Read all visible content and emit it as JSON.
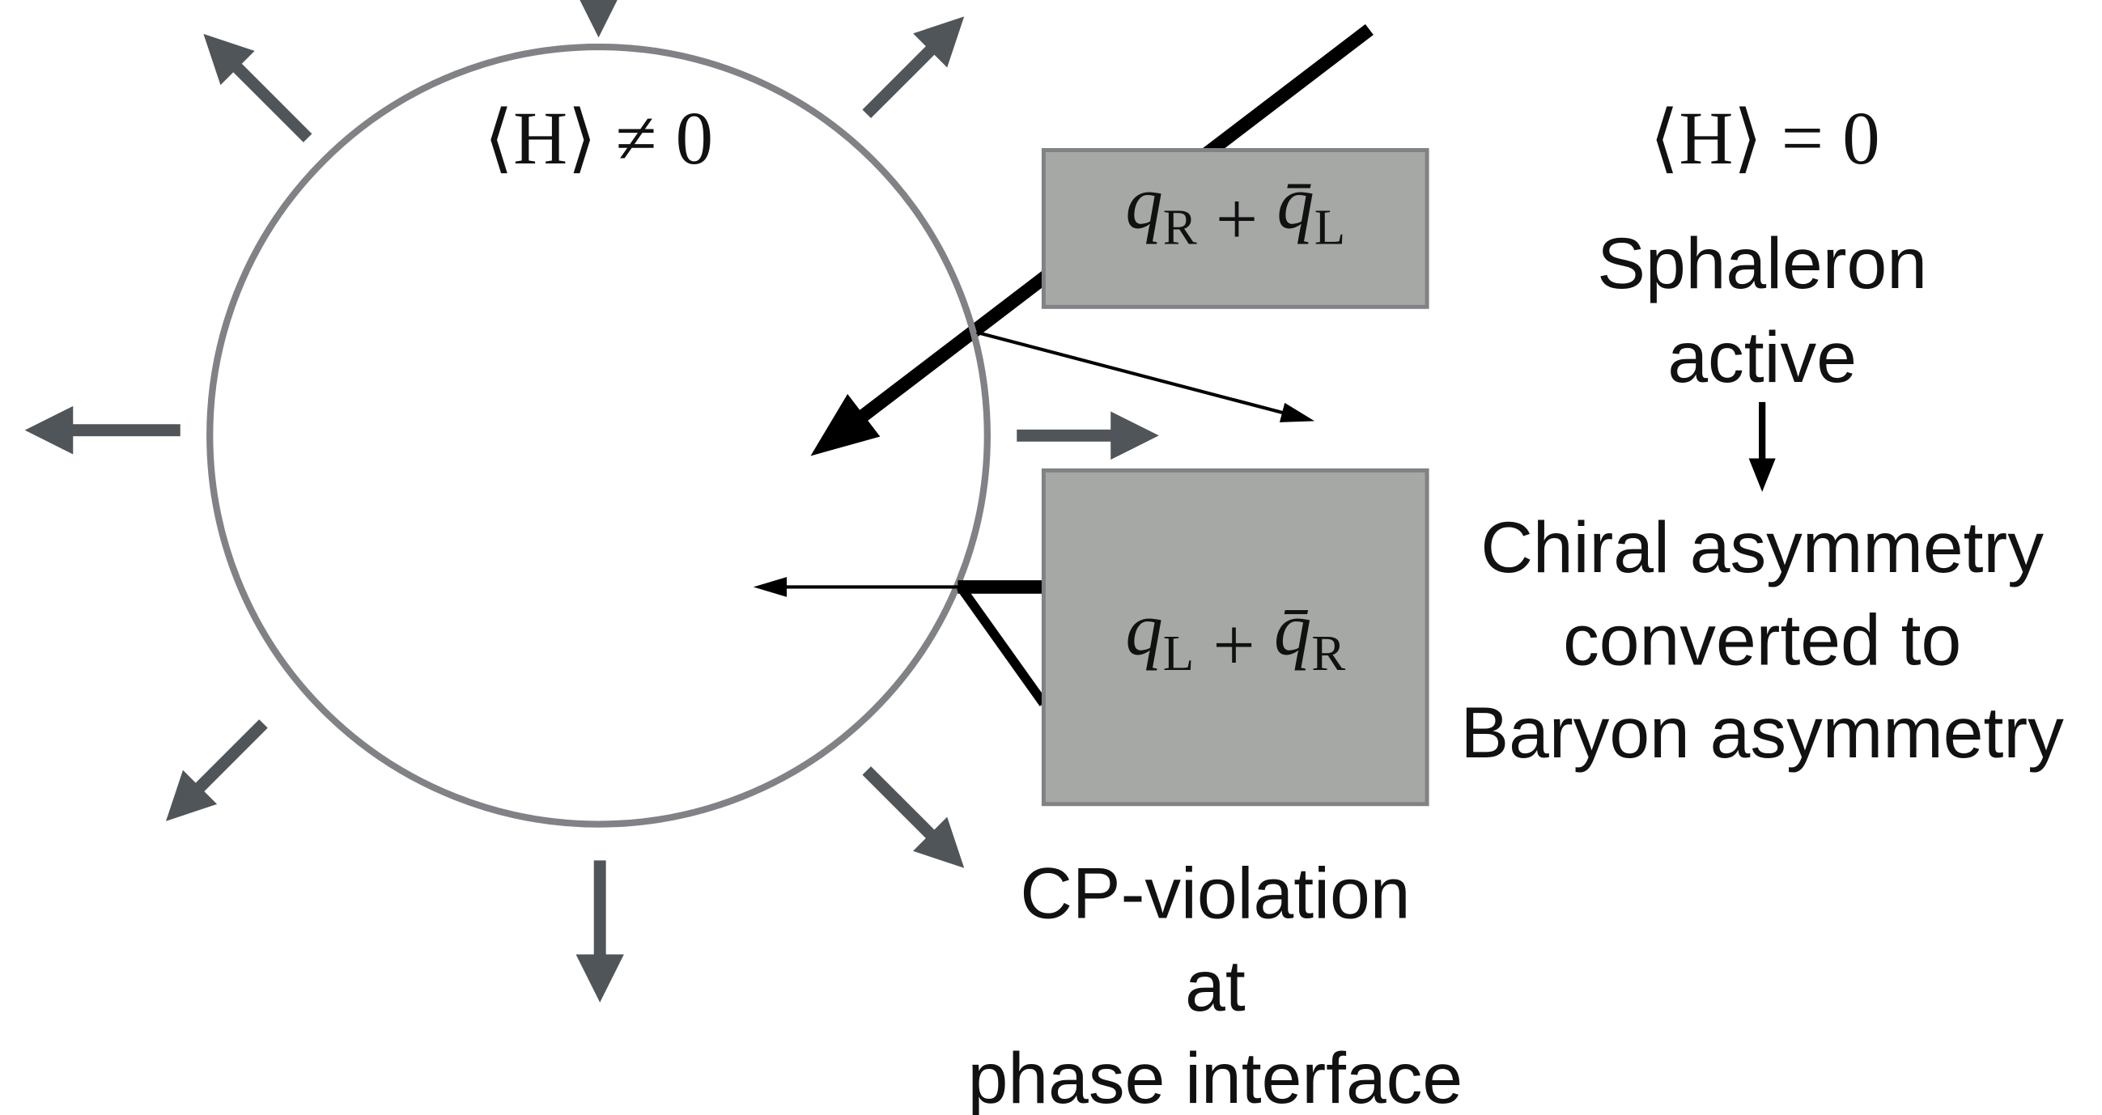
{
  "bubble": {
    "label": "⟨H⟩ ≠ 0"
  },
  "outside": {
    "label": "⟨H⟩ = 0",
    "sphaleron": [
      "Sphaleron",
      "active"
    ],
    "result": [
      "Chiral asymmetry",
      "converted to",
      "Baryon asymmetry"
    ]
  },
  "boxes": [
    {
      "parts": [
        "q",
        "R",
        " + ",
        "q̄",
        "L"
      ]
    },
    {
      "parts": [
        "q",
        "L",
        " + ",
        "q̄",
        "R"
      ]
    }
  ],
  "interface": [
    "CP-violation",
    "at",
    "phase interface"
  ]
}
